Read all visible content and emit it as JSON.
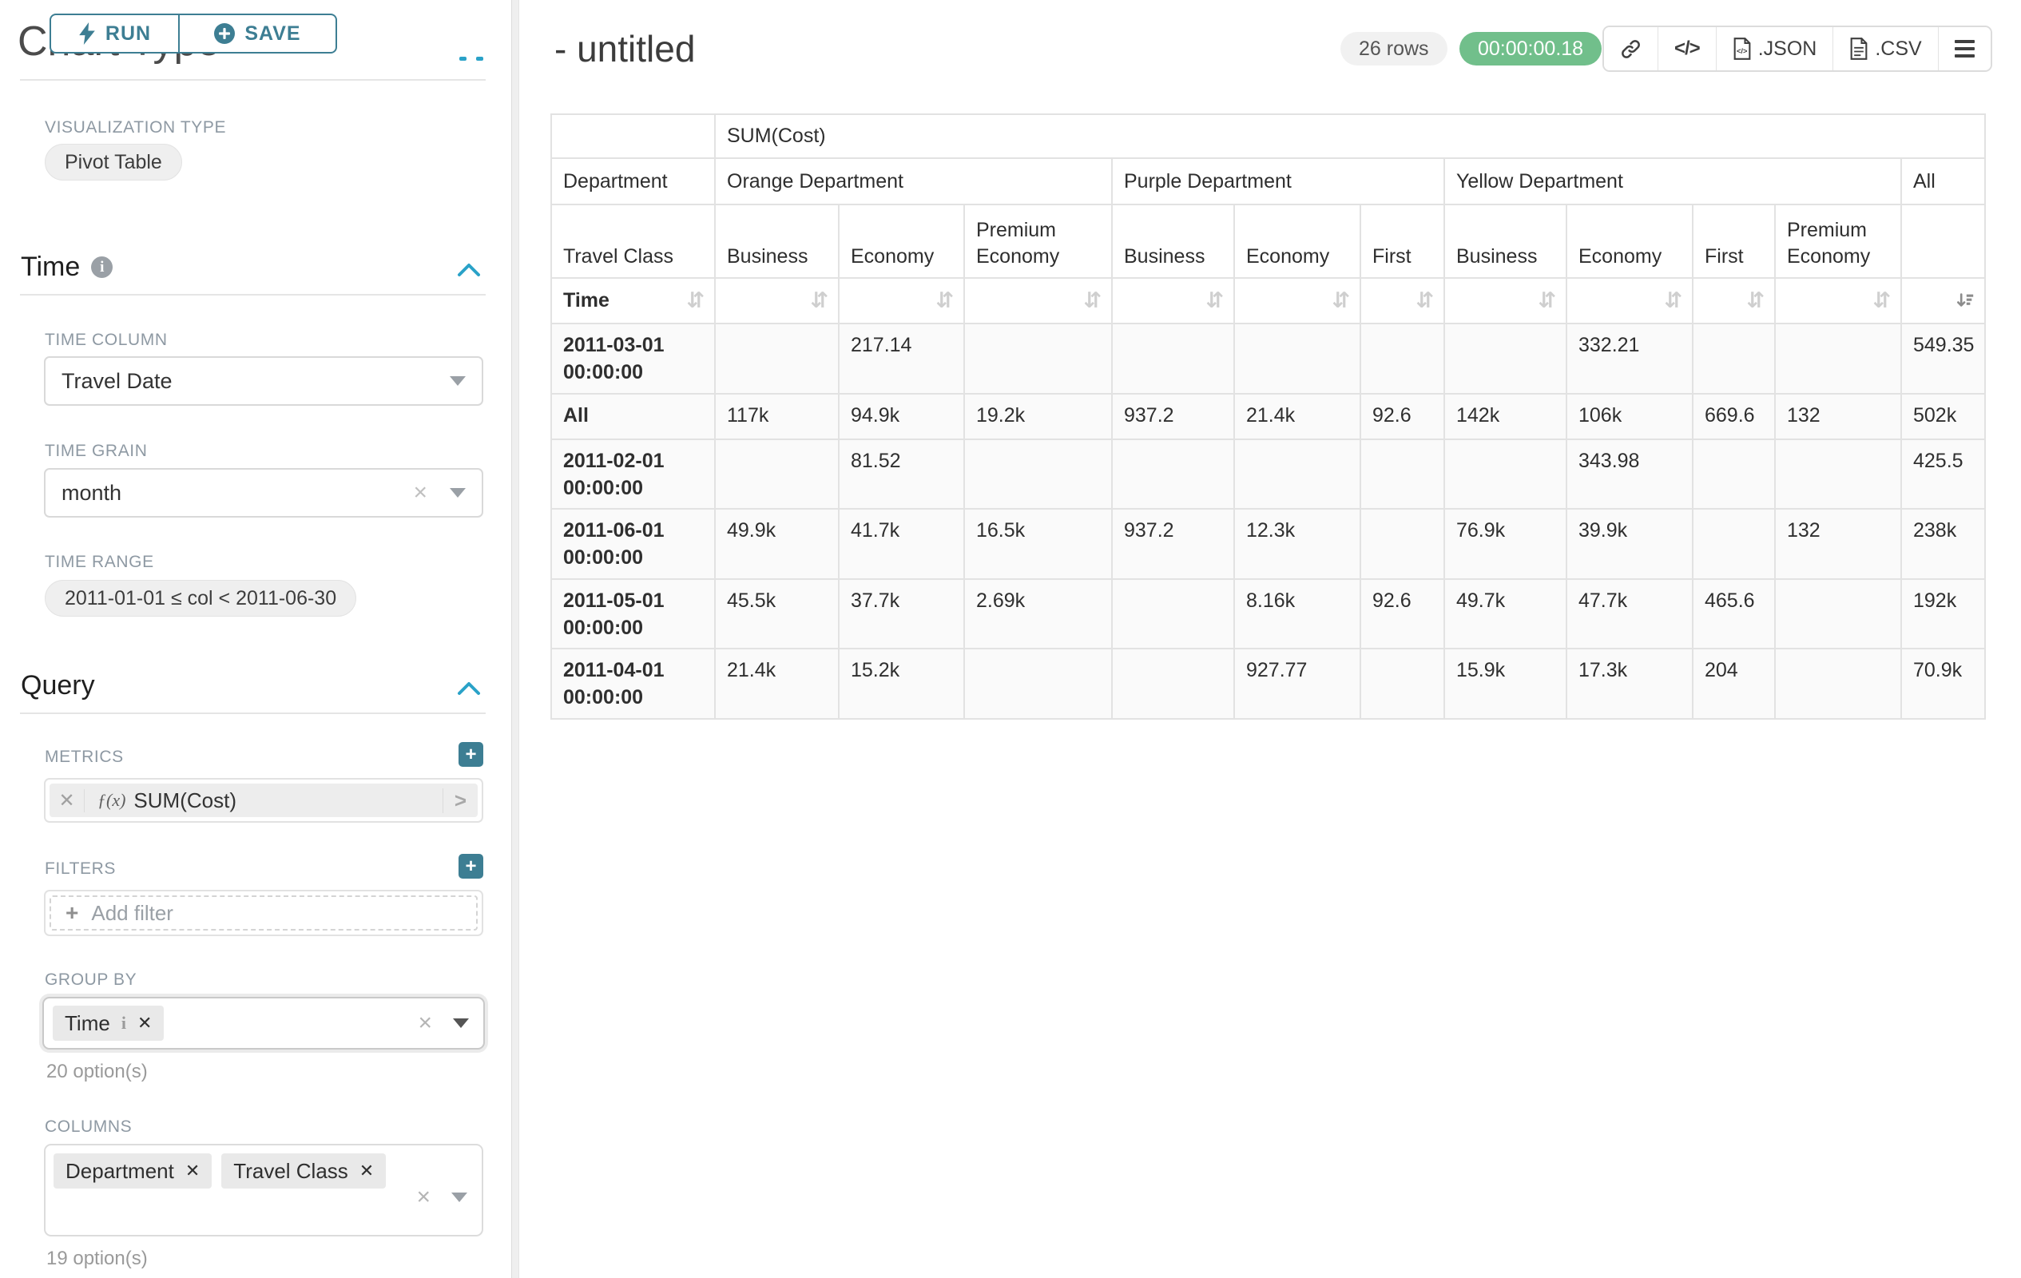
{
  "left_panel": {
    "clipped_heading": "Chart Type",
    "run_label": "RUN",
    "save_label": "SAVE",
    "viz_type_label": "VISUALIZATION TYPE",
    "viz_type_value": "Pivot Table",
    "time_section": {
      "title": "Time",
      "time_column_label": "TIME COLUMN",
      "time_column_value": "Travel Date",
      "time_grain_label": "TIME GRAIN",
      "time_grain_value": "month",
      "time_range_label": "TIME RANGE",
      "time_range_value": "2011-01-01 ≤ col < 2011-06-30"
    },
    "query_section": {
      "title": "Query",
      "metrics_label": "METRICS",
      "metric_fx": "ƒ(x)",
      "metric_name": "SUM(Cost)",
      "filters_label": "FILTERS",
      "add_filter_label": "Add filter",
      "group_by_label": "GROUP BY",
      "group_by_tags": [
        "Time"
      ],
      "group_by_hint": "20 option(s)",
      "columns_label": "COLUMNS",
      "columns_tags": [
        "Department",
        "Travel Class"
      ],
      "columns_hint": "19 option(s)"
    }
  },
  "header": {
    "title": "- untitled",
    "row_count": "26 rows",
    "duration": "00:00:00.18",
    "json_label": ".JSON",
    "csv_label": ".CSV"
  },
  "pivot": {
    "metric_header": "SUM(Cost)",
    "col_group_label": "Department",
    "row_group_label": "Travel Class",
    "row_axis_label": "Time",
    "groups": [
      {
        "label": "Orange Department",
        "cols": [
          "Business",
          "Economy",
          "Premium Economy"
        ]
      },
      {
        "label": "Purple Department",
        "cols": [
          "Business",
          "Economy",
          "First"
        ]
      },
      {
        "label": "Yellow Department",
        "cols": [
          "Business",
          "Economy",
          "First",
          "Premium Economy"
        ]
      },
      {
        "label": "All",
        "cols": [
          ""
        ]
      }
    ],
    "rows": [
      {
        "label": "2011-03-01 00:00:00",
        "values": [
          "",
          "217.14",
          "",
          "",
          "",
          "",
          "",
          "332.21",
          "",
          "",
          "549.35"
        ]
      },
      {
        "label": "All",
        "values": [
          "117k",
          "94.9k",
          "19.2k",
          "937.2",
          "21.4k",
          "92.6",
          "142k",
          "106k",
          "669.6",
          "132",
          "502k"
        ]
      },
      {
        "label": "2011-02-01 00:00:00",
        "values": [
          "",
          "81.52",
          "",
          "",
          "",
          "",
          "",
          "343.98",
          "",
          "",
          "425.5"
        ]
      },
      {
        "label": "2011-06-01 00:00:00",
        "values": [
          "49.9k",
          "41.7k",
          "16.5k",
          "937.2",
          "12.3k",
          "",
          "76.9k",
          "39.9k",
          "",
          "132",
          "238k"
        ]
      },
      {
        "label": "2011-05-01 00:00:00",
        "values": [
          "45.5k",
          "37.7k",
          "2.69k",
          "",
          "8.16k",
          "92.6",
          "49.7k",
          "47.7k",
          "465.6",
          "",
          "192k"
        ]
      },
      {
        "label": "2011-04-01 00:00:00",
        "values": [
          "21.4k",
          "15.2k",
          "",
          "",
          "927.77",
          "",
          "15.9k",
          "17.3k",
          "204",
          "",
          "70.9k"
        ]
      }
    ]
  }
}
